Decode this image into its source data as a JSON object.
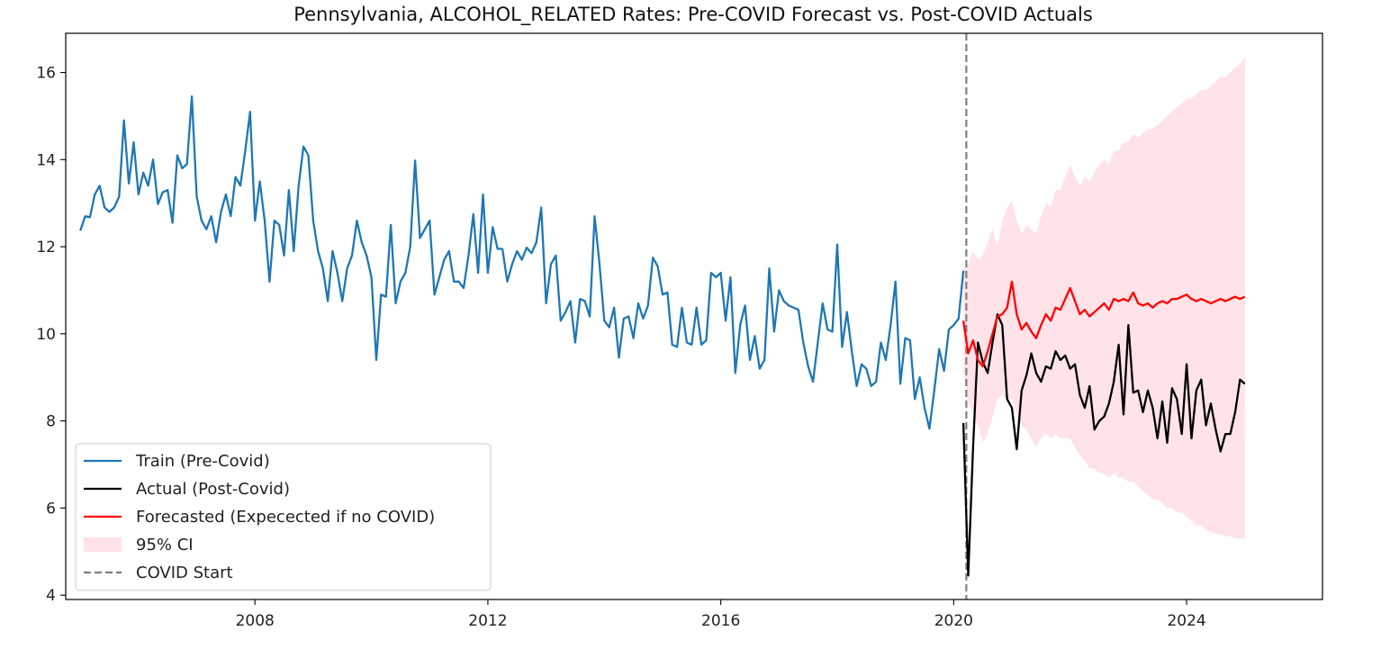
{
  "chart_data": {
    "type": "line",
    "title": "Pennsylvania, ALCOHOL_RELATED Rates: Pre-COVID Forecast vs. Post-COVID Actuals",
    "xlabel": "",
    "ylabel": "",
    "x_axis": "date",
    "xlim": [
      "2004-10-01",
      "2026-05-01"
    ],
    "ylim": [
      3.9,
      16.9
    ],
    "x_ticks": [
      "2008",
      "2012",
      "2016",
      "2020",
      "2024"
    ],
    "y_ticks": [
      "4",
      "6",
      "8",
      "10",
      "12",
      "14",
      "16"
    ],
    "grid": false,
    "legend_position": "lower-left",
    "covid_start": "2020-03-01",
    "legend": [
      {
        "label": "Train (Pre-Covid)",
        "color": "#1f77b4",
        "style": "line"
      },
      {
        "label": "Actual (Post-Covid)",
        "color": "#000000",
        "style": "line"
      },
      {
        "label": "Forecasted (Expecected if no COVID)",
        "color": "#ff0000",
        "style": "line"
      },
      {
        "label": "95% CI",
        "color": "#ffc0cb",
        "style": "band"
      },
      {
        "label": "COVID Start",
        "color": "#7f7f7f",
        "style": "dashed"
      }
    ],
    "series": [
      {
        "name": "Train (Pre-Covid)",
        "color": "#1f77b4",
        "start": "2005-01",
        "values": [
          12.37,
          12.7,
          12.68,
          13.2,
          13.4,
          12.9,
          12.8,
          12.9,
          13.15,
          14.9,
          13.45,
          14.4,
          13.2,
          13.7,
          13.4,
          14.0,
          12.98,
          13.25,
          13.3,
          12.55,
          14.1,
          13.8,
          13.9,
          15.45,
          13.15,
          12.6,
          12.4,
          12.7,
          12.1,
          12.8,
          13.2,
          12.7,
          13.6,
          13.4,
          14.2,
          15.1,
          12.6,
          13.5,
          12.6,
          11.2,
          12.6,
          12.5,
          11.8,
          13.3,
          11.9,
          13.4,
          14.3,
          14.1,
          12.6,
          11.9,
          11.5,
          10.75,
          11.9,
          11.4,
          10.75,
          11.5,
          11.8,
          12.6,
          12.1,
          11.8,
          11.3,
          9.4,
          10.9,
          10.85,
          12.5,
          10.7,
          11.2,
          11.4,
          12.0,
          13.98,
          12.2,
          12.4,
          12.6,
          10.9,
          11.3,
          11.7,
          11.9,
          11.2,
          11.2,
          11.05,
          11.8,
          12.75,
          11.4,
          13.2,
          11.4,
          12.45,
          11.95,
          11.95,
          11.2,
          11.6,
          11.9,
          11.7,
          11.98,
          11.85,
          12.1,
          12.9,
          10.7,
          11.6,
          11.8,
          10.3,
          10.5,
          10.75,
          9.8,
          10.8,
          10.75,
          10.4,
          12.7,
          11.6,
          10.3,
          10.15,
          10.6,
          9.45,
          10.35,
          10.4,
          9.9,
          10.7,
          10.35,
          10.65,
          11.75,
          11.55,
          10.9,
          10.95,
          9.75,
          9.7,
          10.6,
          9.8,
          9.75,
          10.6,
          9.75,
          9.85,
          11.4,
          11.3,
          11.4,
          10.3,
          11.3,
          9.1,
          10.2,
          10.65,
          9.4,
          9.95,
          9.2,
          9.4,
          11.5,
          10.05,
          11.0,
          10.75,
          10.65,
          10.6,
          10.55,
          9.8,
          9.25,
          8.9,
          9.8,
          10.7,
          10.1,
          10.05,
          12.05,
          9.7,
          10.5,
          9.6,
          8.8,
          9.3,
          9.2,
          8.8,
          8.9,
          9.8,
          9.4,
          10.2,
          11.2,
          8.85,
          9.9,
          9.85,
          8.5,
          9.0,
          8.3,
          7.82,
          8.7,
          9.65,
          9.15,
          10.1,
          10.2,
          10.35,
          11.45
        ]
      },
      {
        "name": "Actual (Post-Covid)",
        "color": "#000000",
        "start": "2020-03",
        "values": [
          7.95,
          4.45,
          7.4,
          9.8,
          9.35,
          9.1,
          9.8,
          10.45,
          10.2,
          8.5,
          8.3,
          7.35,
          8.7,
          9.05,
          9.55,
          9.1,
          8.9,
          9.25,
          9.2,
          9.6,
          9.4,
          9.5,
          9.2,
          9.3,
          8.6,
          8.3,
          8.8,
          7.8,
          8.0,
          8.1,
          8.4,
          8.9,
          9.75,
          8.15,
          10.2,
          8.65,
          8.7,
          8.2,
          8.7,
          8.3,
          7.6,
          8.45,
          7.5,
          8.75,
          8.5,
          7.7,
          9.3,
          7.6,
          8.7,
          8.95,
          7.9,
          8.4,
          7.8,
          7.3,
          7.7,
          7.7,
          8.2,
          8.95,
          8.85
        ]
      },
      {
        "name": "Forecasted (Expecected if no COVID)",
        "color": "#ff0000",
        "start": "2020-03",
        "values": [
          10.3,
          9.55,
          9.85,
          9.4,
          9.25,
          9.6,
          10.0,
          10.4,
          10.45,
          10.6,
          11.2,
          10.45,
          10.1,
          10.25,
          10.05,
          9.9,
          10.2,
          10.45,
          10.3,
          10.6,
          10.55,
          10.8,
          11.05,
          10.75,
          10.45,
          10.55,
          10.4,
          10.5,
          10.6,
          10.7,
          10.55,
          10.8,
          10.75,
          10.8,
          10.75,
          10.95,
          10.7,
          10.65,
          10.7,
          10.6,
          10.7,
          10.75,
          10.7,
          10.8,
          10.8,
          10.85,
          10.9,
          10.8,
          10.75,
          10.8,
          10.75,
          10.7,
          10.75,
          10.8,
          10.75,
          10.8,
          10.85,
          10.8,
          10.85
        ]
      }
    ],
    "ci_band": {
      "name": "95% CI",
      "color": "#ffc0cb",
      "start": "2020-03",
      "upper": [
        11.5,
        11.6,
        11.9,
        11.7,
        11.8,
        12.1,
        12.4,
        12.0,
        12.6,
        12.9,
        13.05,
        12.6,
        12.3,
        12.5,
        12.4,
        12.3,
        12.7,
        13.0,
        12.9,
        13.3,
        13.3,
        13.6,
        13.9,
        13.6,
        13.4,
        13.6,
        13.5,
        13.7,
        13.9,
        14.0,
        13.9,
        14.2,
        14.2,
        14.4,
        14.4,
        14.6,
        14.5,
        14.6,
        14.7,
        14.7,
        14.8,
        14.9,
        15.0,
        15.1,
        15.2,
        15.3,
        15.4,
        15.4,
        15.5,
        15.6,
        15.6,
        15.7,
        15.8,
        15.9,
        15.9,
        16.0,
        16.1,
        16.2,
        16.35
      ],
      "lower": [
        9.1,
        8.4,
        8.2,
        7.9,
        7.5,
        7.7,
        8.1,
        8.5,
        8.6,
        8.5,
        8.5,
        8.2,
        7.9,
        7.8,
        7.6,
        7.4,
        7.6,
        7.7,
        7.6,
        7.7,
        7.6,
        7.6,
        7.6,
        7.4,
        7.2,
        7.1,
        6.9,
        6.9,
        6.8,
        6.8,
        6.7,
        6.8,
        6.7,
        6.7,
        6.6,
        6.6,
        6.5,
        6.4,
        6.3,
        6.2,
        6.2,
        6.1,
        6.0,
        6.0,
        5.9,
        5.9,
        5.8,
        5.7,
        5.6,
        5.6,
        5.5,
        5.45,
        5.4,
        5.4,
        5.35,
        5.35,
        5.3,
        5.3,
        5.3
      ]
    }
  }
}
